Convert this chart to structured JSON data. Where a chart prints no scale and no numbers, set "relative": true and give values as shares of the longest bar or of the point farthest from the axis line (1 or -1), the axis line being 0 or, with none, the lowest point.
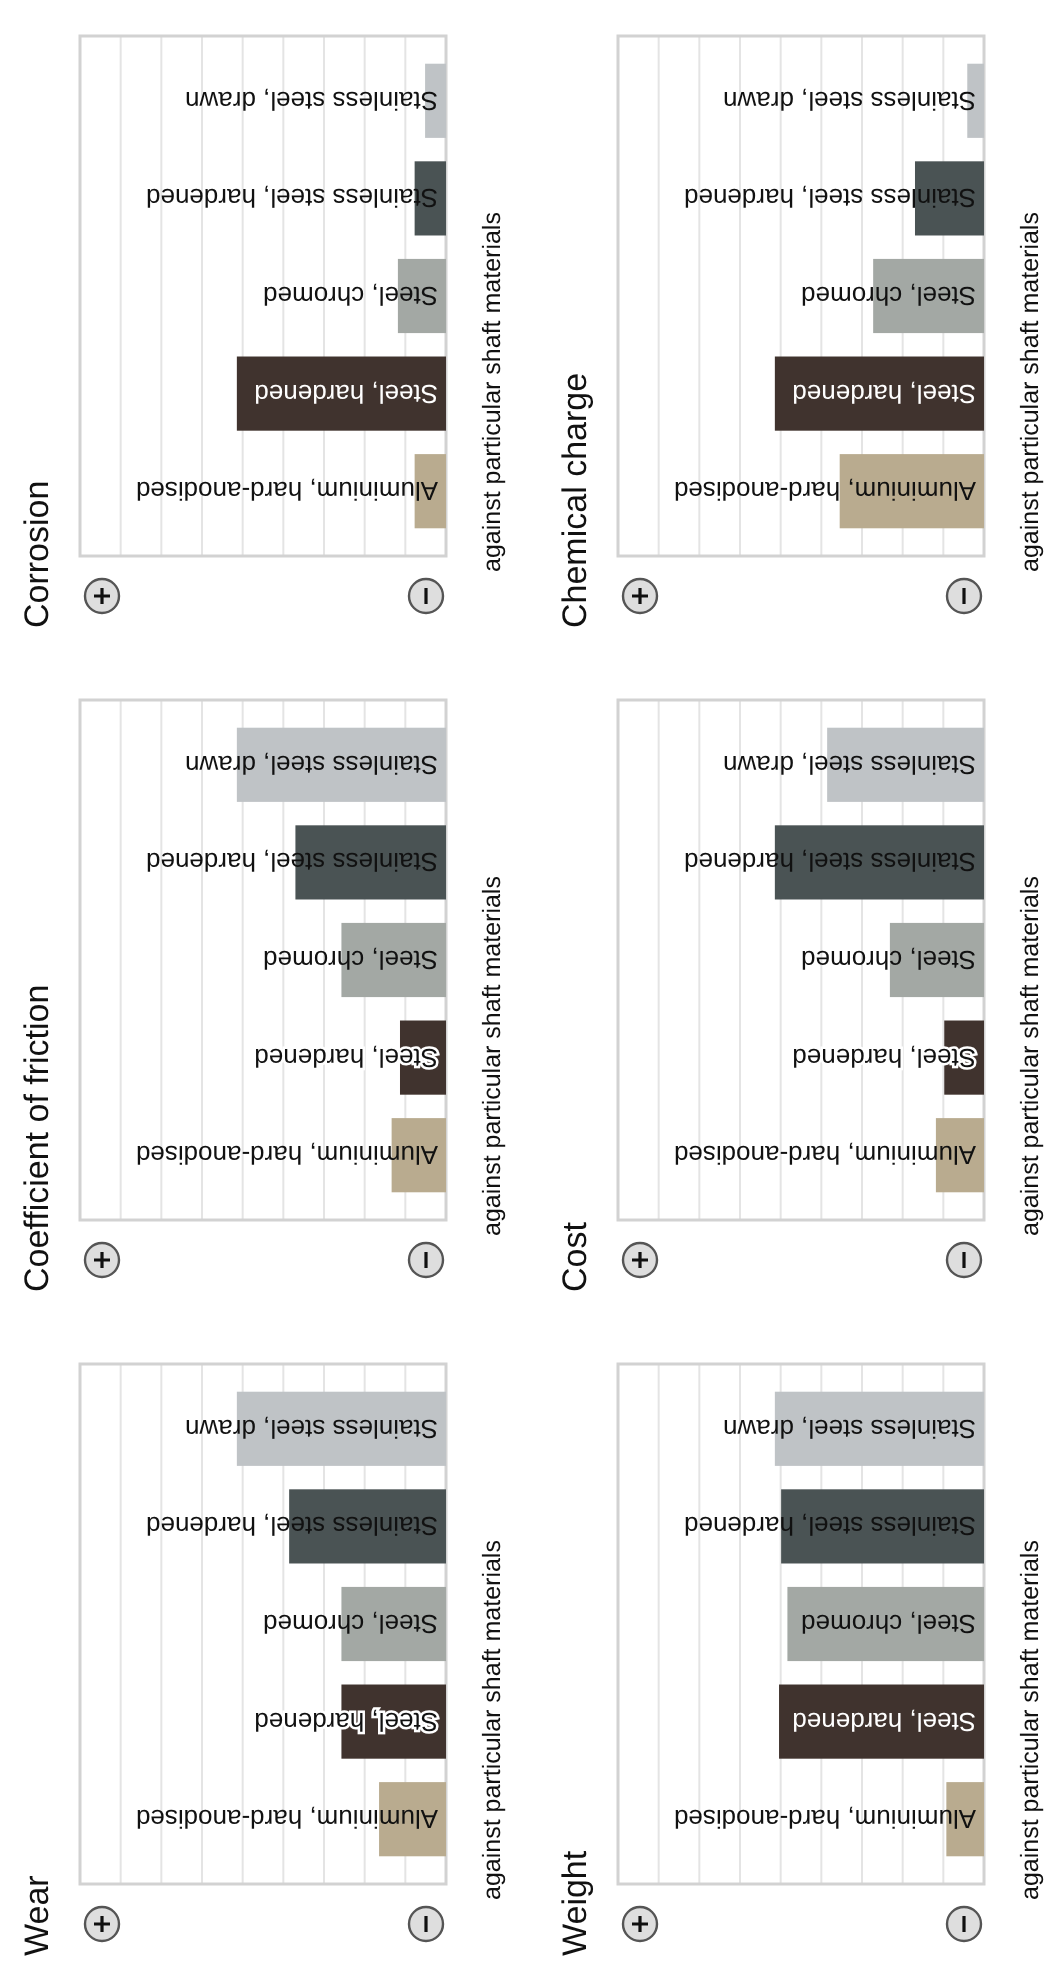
{
  "chart_data": [
    {
      "type": "bar",
      "orientation": "horizontal",
      "title": "Wear",
      "categories": [
        "Stainless steel, drawn",
        "Stainless steel, hardened",
        "Steel, chromed",
        "Steel, hardened",
        "Aluminium, hard-anodised"
      ],
      "values": [
        1,
        0.75,
        0.5,
        0.5,
        0.32
      ],
      "colors": [
        "#bfc3c6",
        "#4a5354",
        "#a3a8a4",
        "#40332e",
        "#b9ab8f"
      ],
      "relative": true,
      "grid": true,
      "annotations": [
        "against particular shaft materials"
      ]
    },
    {
      "type": "bar",
      "orientation": "horizontal",
      "title": "Coefficient of friction",
      "categories": [
        "Stainless steel, drawn",
        "Stainless steel, hardened",
        "Steel, chromed",
        "Steel, hardened",
        "Aluminium, hard-anodised"
      ],
      "values": [
        1,
        0.72,
        0.5,
        0.22,
        0.26
      ],
      "colors": [
        "#bfc3c6",
        "#4a5354",
        "#a3a8a4",
        "#40332e",
        "#b9ab8f"
      ],
      "relative": true,
      "grid": true,
      "annotations": [
        "against particular shaft materials"
      ]
    },
    {
      "type": "bar",
      "orientation": "horizontal",
      "title": "Corrosion",
      "categories": [
        "Stainless steel, drawn",
        "Stainless steel, hardened",
        "Steel, chromed",
        "Steel, hardened",
        "Aluminium, hard-anodised"
      ],
      "values": [
        0.1,
        0.15,
        0.23,
        1,
        0.15
      ],
      "colors": [
        "#bfc3c6",
        "#4a5354",
        "#a3a8a4",
        "#40332e",
        "#b9ab8f"
      ],
      "relative": true,
      "grid": true,
      "annotations": [
        "against particular shaft materials"
      ]
    },
    {
      "type": "bar",
      "orientation": "horizontal",
      "title": "Weight",
      "categories": [
        "Stainless steel, drawn",
        "Stainless steel, hardened",
        "Steel, chromed",
        "Steel, hardened",
        "Aluminium, hard-anodised"
      ],
      "values": [
        1,
        0.97,
        0.94,
        0.98,
        0.18
      ],
      "colors": [
        "#bfc3c6",
        "#4a5354",
        "#a3a8a4",
        "#40332e",
        "#b9ab8f"
      ],
      "relative": true,
      "grid": true,
      "annotations": [
        "against particular shaft materials"
      ]
    },
    {
      "type": "bar",
      "orientation": "horizontal",
      "title": "Cost",
      "categories": [
        "Stainless steel, drawn",
        "Stainless steel, hardened",
        "Steel, chromed",
        "Steel, hardened",
        "Aluminium, hard-anodised"
      ],
      "values": [
        0.75,
        1,
        0.45,
        0.19,
        0.23
      ],
      "colors": [
        "#bfc3c6",
        "#4a5354",
        "#a3a8a4",
        "#40332e",
        "#b9ab8f"
      ],
      "relative": true,
      "grid": true,
      "annotations": [
        "against particular shaft materials"
      ]
    },
    {
      "type": "bar",
      "orientation": "horizontal",
      "title": "Chemical charge",
      "categories": [
        "Stainless steel, drawn",
        "Stainless steel, hardened",
        "Steel, chromed",
        "Steel, hardened",
        "Aluminium, hard-anodised"
      ],
      "values": [
        0.08,
        0.33,
        0.53,
        1,
        0.69
      ],
      "colors": [
        "#bfc3c6",
        "#4a5354",
        "#a3a8a4",
        "#40332e",
        "#b9ab8f"
      ],
      "relative": true,
      "grid": true,
      "annotations": [
        "against particular shaft materials"
      ]
    }
  ]
}
